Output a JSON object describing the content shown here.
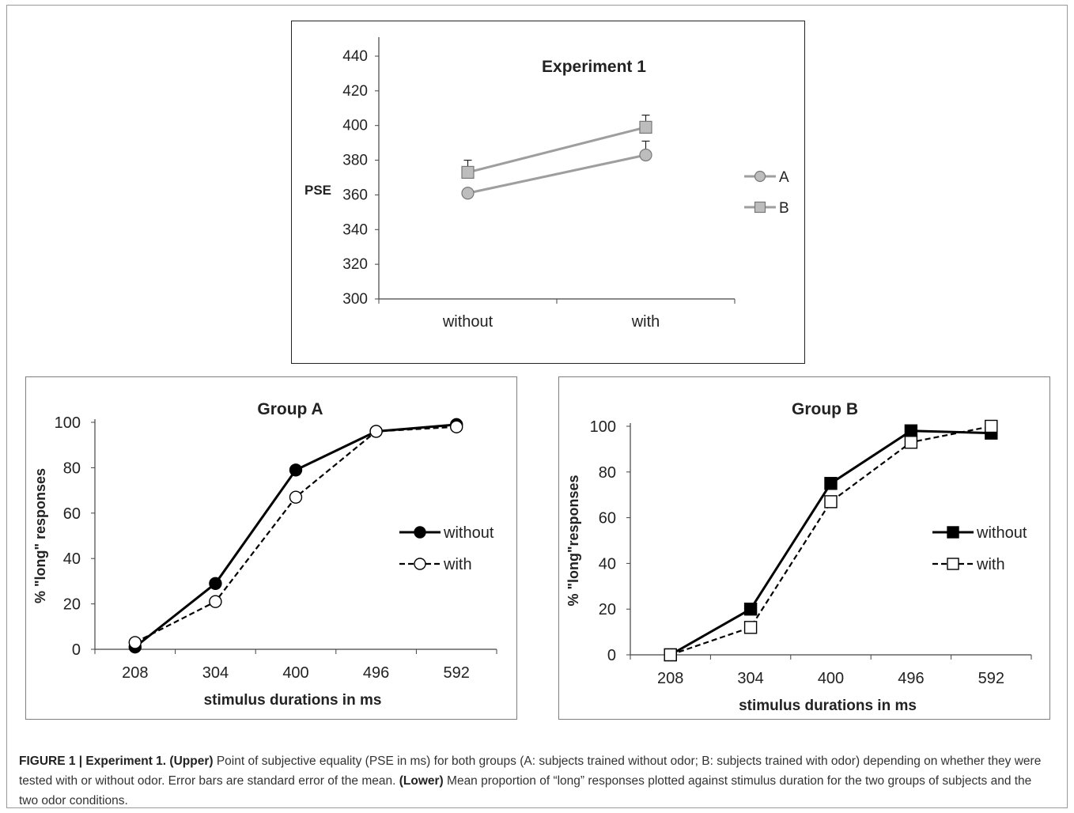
{
  "chart_data": [
    {
      "type": "line",
      "title": "Experiment 1",
      "xlabel": "",
      "ylabel": "PSE",
      "categories": [
        "without",
        "with"
      ],
      "ylim": [
        300,
        440
      ],
      "yticks": [
        300,
        320,
        340,
        360,
        380,
        400,
        420,
        440
      ],
      "legend_position": "right",
      "series": [
        {
          "name": "A",
          "values": [
            361,
            383
          ],
          "error_plus": [
            0,
            8
          ],
          "marker": "circle",
          "color": "#9e9e9e"
        },
        {
          "name": "B",
          "values": [
            373,
            399
          ],
          "error_plus": [
            7,
            7
          ],
          "marker": "square",
          "color": "#9e9e9e"
        }
      ]
    },
    {
      "type": "line",
      "title": "Group A",
      "xlabel": "stimulus durations in ms",
      "ylabel": "% \"long\" responses",
      "categories": [
        "208",
        "304",
        "400",
        "496",
        "592"
      ],
      "ylim": [
        0,
        100
      ],
      "yticks": [
        0,
        20,
        40,
        60,
        80,
        100
      ],
      "legend_position": "right",
      "series": [
        {
          "name": "without",
          "values": [
            1,
            29,
            79,
            96,
            99
          ],
          "marker": "circle",
          "filled": true,
          "dashed": false
        },
        {
          "name": "with",
          "values": [
            3,
            21,
            67,
            96,
            98
          ],
          "marker": "circle",
          "filled": false,
          "dashed": true
        }
      ]
    },
    {
      "type": "line",
      "title": "Group B",
      "xlabel": "stimulus durations in ms",
      "ylabel": "% \"long\"responses",
      "categories": [
        "208",
        "304",
        "400",
        "496",
        "592"
      ],
      "ylim": [
        0,
        100
      ],
      "yticks": [
        0,
        20,
        40,
        60,
        80,
        100
      ],
      "legend_position": "right",
      "series": [
        {
          "name": "without",
          "values": [
            0,
            20,
            75,
            98,
            97
          ],
          "marker": "square",
          "filled": true,
          "dashed": false
        },
        {
          "name": "with",
          "values": [
            0,
            12,
            67,
            93,
            100
          ],
          "marker": "square",
          "filled": false,
          "dashed": true
        }
      ]
    }
  ],
  "caption": {
    "figure_label": "FIGURE 1 | Experiment 1.",
    "upper_label": "(Upper)",
    "upper_text": "Point of subjective equality (PSE in ms) for both groups (A: subjects trained without odor; B: subjects trained with odor) depending on whether they were tested with or without odor. Error bars are standard error of the mean.",
    "lower_label": "(Lower)",
    "lower_text": "Mean proportion of “long” responses plotted against stimulus duration for the two groups of subjects and the two odor conditions."
  }
}
